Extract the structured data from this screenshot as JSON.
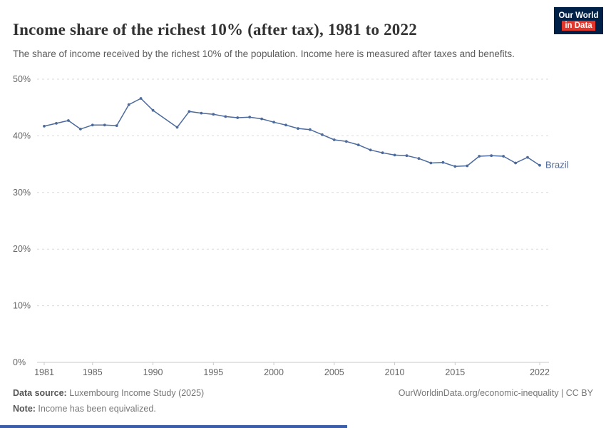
{
  "header": {
    "title": "Income share of the richest 10% (after tax), 1981 to 2022",
    "subtitle": "The share of income received by the richest 10% of the population. Income here is measured after taxes and benefits.",
    "logo": {
      "line1": "Our World",
      "line2": "in Data"
    }
  },
  "colors": {
    "line": "#4C6A9C",
    "grid": "#d9d9d9",
    "axis": "#c8c8c8",
    "tick_text": "#666666",
    "title": "#333333",
    "subtitle": "#5b5b5b",
    "footer": "#777777",
    "logo_bg": "#002147",
    "logo_accent": "#E0362C",
    "bottom_bar": "#3B5EA9"
  },
  "chart_data": {
    "type": "line",
    "title": "Income share of the richest 10% (after tax), 1981 to 2022",
    "xlabel": "",
    "ylabel": "",
    "xlim": [
      1981,
      2022
    ],
    "ylim": [
      0,
      50
    ],
    "grid": true,
    "legend_position": "end-of-line label",
    "x_ticks": [
      1981,
      1985,
      1990,
      1995,
      2000,
      2005,
      2010,
      2015,
      2022
    ],
    "y_tick_values": [
      0,
      10,
      20,
      30,
      40,
      50
    ],
    "y_tick_labels": [
      "0%",
      "10%",
      "20%",
      "30%",
      "40%",
      "50%"
    ],
    "series": [
      {
        "name": "Brazil",
        "color": "#4C6A9C",
        "points": [
          [
            1981,
            41.7
          ],
          [
            1982,
            42.2
          ],
          [
            1983,
            42.7
          ],
          [
            1984,
            41.2
          ],
          [
            1985,
            41.9
          ],
          [
            1986,
            41.9
          ],
          [
            1987,
            41.8
          ],
          [
            1988,
            45.5
          ],
          [
            1989,
            46.6
          ],
          [
            1990,
            44.5
          ],
          [
            1992,
            41.5
          ],
          [
            1993,
            44.3
          ],
          [
            1994,
            44.0
          ],
          [
            1995,
            43.8
          ],
          [
            1996,
            43.4
          ],
          [
            1997,
            43.2
          ],
          [
            1998,
            43.3
          ],
          [
            1999,
            43.0
          ],
          [
            2000,
            42.4
          ],
          [
            2001,
            41.9
          ],
          [
            2002,
            41.3
          ],
          [
            2003,
            41.1
          ],
          [
            2004,
            40.2
          ],
          [
            2005,
            39.3
          ],
          [
            2006,
            39.0
          ],
          [
            2007,
            38.4
          ],
          [
            2008,
            37.5
          ],
          [
            2009,
            37.0
          ],
          [
            2010,
            36.6
          ],
          [
            2011,
            36.5
          ],
          [
            2012,
            36.0
          ],
          [
            2013,
            35.2
          ],
          [
            2014,
            35.3
          ],
          [
            2015,
            34.6
          ],
          [
            2016,
            34.7
          ],
          [
            2017,
            36.4
          ],
          [
            2018,
            36.5
          ],
          [
            2019,
            36.4
          ],
          [
            2020,
            35.2
          ],
          [
            2021,
            36.2
          ],
          [
            2022,
            34.8
          ]
        ]
      }
    ]
  },
  "footer": {
    "source_label": "Data source:",
    "source_text": " Luxembourg Income Study (2025)",
    "note_label": "Note:",
    "note_text": " Income has been equivalized.",
    "attribution": "OurWorldinData.org/economic-inequality | CC BY"
  }
}
